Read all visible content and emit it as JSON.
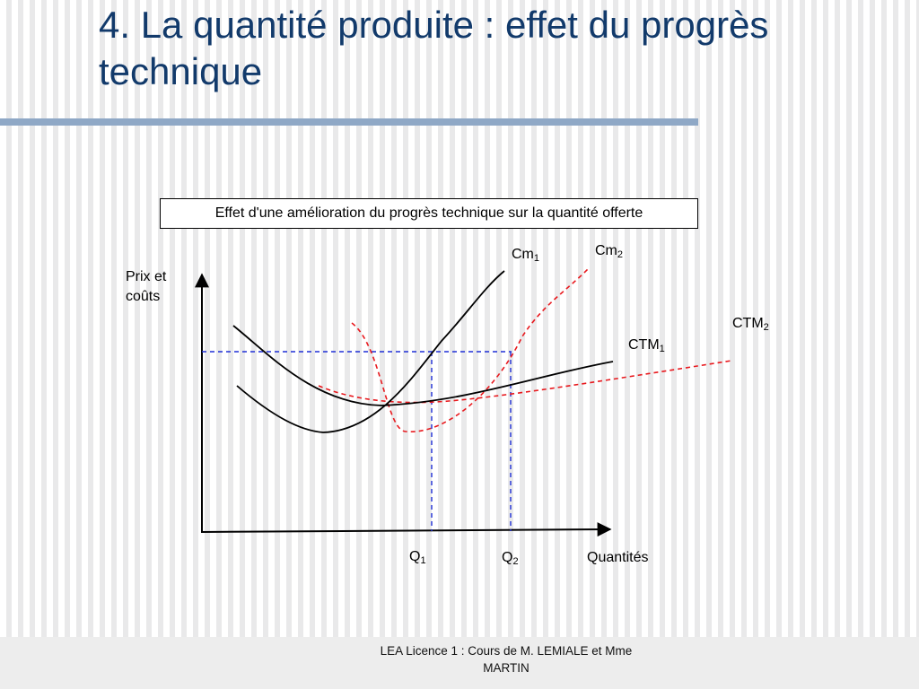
{
  "slide": {
    "title": "4. La quantité produite : effet du progrès technique",
    "caption": "Effet d'une amélioration du progrès technique sur la quantité offerte",
    "footer": "LEA Licence 1 : Cours de M. LEMIALE et Mme MARTIN"
  },
  "diagram": {
    "y_axis_label": "Prix et coûts",
    "x_axis_label": "Quantités",
    "curves": [
      {
        "label": "Cm",
        "sub": "1",
        "color": "#000000",
        "style": "solid"
      },
      {
        "label": "Cm",
        "sub": "2",
        "color": "#e8191e",
        "style": "dashed"
      },
      {
        "label": "CTM",
        "sub": "1",
        "color": "#000000",
        "style": "solid"
      },
      {
        "label": "CTM",
        "sub": "2",
        "color": "#e8191e",
        "style": "dashed"
      }
    ],
    "quantities": [
      {
        "label": "Q",
        "sub": "1"
      },
      {
        "label": "Q",
        "sub": "2"
      }
    ],
    "guide_color": "#1f2fd6"
  }
}
